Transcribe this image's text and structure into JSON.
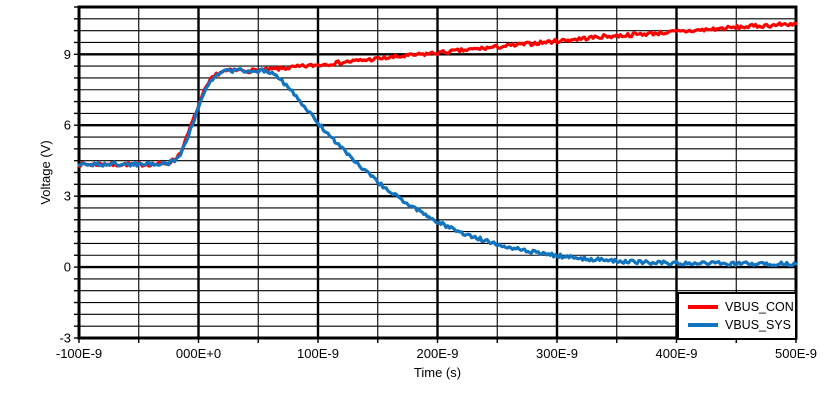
{
  "figure": {
    "background_color": "#ffffff",
    "grid_color": "#000000",
    "frame_color": "#000000"
  },
  "legend": {
    "items": [
      {
        "label": "VBUS_CON",
        "color": "#ff0000"
      },
      {
        "label": "VBUS_SYS",
        "color": "#1273be"
      }
    ]
  },
  "chart_data": {
    "type": "line",
    "title": "",
    "xlabel": "Time (s)",
    "ylabel": "Voltage (V)",
    "x_unit_ns": true,
    "xlim": [
      -100,
      500
    ],
    "ylim": [
      -3,
      11
    ],
    "x_major_tick": 100,
    "x_minor_tick": 50,
    "y_major_tick": 3,
    "y_minor_tick": 0.5,
    "grid": "major+minor",
    "legend_position": "bottom-right",
    "x_tick_values": [
      -100,
      0,
      100,
      200,
      300,
      400,
      500
    ],
    "x_tick_labels": [
      "-100E-9",
      "000E+0",
      "100E-9",
      "200E-9",
      "300E-9",
      "400E-9",
      "500E-9"
    ],
    "y_tick_values": [
      9,
      6,
      3,
      0,
      -3
    ],
    "y_tick_labels": [
      "9",
      "6",
      "3",
      "0",
      "-3"
    ],
    "series": [
      {
        "name": "VBUS_CON",
        "color": "#ff0000",
        "x": [
          -100,
          -90,
          -80,
          -70,
          -60,
          -50,
          -40,
          -30,
          -25,
          -20,
          -15,
          -10,
          -5,
          0,
          5,
          10,
          15,
          20,
          25,
          30,
          35,
          40,
          45,
          50,
          55,
          60,
          70,
          80,
          90,
          100,
          120,
          140,
          160,
          180,
          200,
          220,
          240,
          260,
          280,
          300,
          320,
          336,
          350,
          370,
          400,
          420,
          440,
          460,
          480,
          500
        ],
        "y": [
          4.35,
          4.34,
          4.36,
          4.33,
          4.35,
          4.34,
          4.35,
          4.37,
          4.42,
          4.55,
          4.85,
          5.45,
          6.15,
          6.8,
          7.45,
          7.9,
          8.15,
          8.28,
          8.3,
          8.31,
          8.33,
          8.3,
          8.31,
          8.32,
          8.33,
          8.35,
          8.4,
          8.45,
          8.5,
          8.55,
          8.66,
          8.76,
          8.86,
          8.96,
          9.06,
          9.16,
          9.26,
          9.36,
          9.46,
          9.56,
          9.66,
          9.74,
          9.78,
          9.85,
          9.95,
          10.02,
          10.1,
          10.17,
          10.23,
          10.3
        ]
      },
      {
        "name": "VBUS_SYS",
        "color": "#1273be",
        "x": [
          -100,
          -90,
          -80,
          -70,
          -60,
          -50,
          -40,
          -30,
          -25,
          -20,
          -15,
          -10,
          -5,
          0,
          5,
          10,
          15,
          20,
          25,
          30,
          35,
          40,
          45,
          50,
          55,
          60,
          65,
          70,
          75,
          80,
          85,
          90,
          95,
          100,
          110,
          120,
          130,
          140,
          150,
          160,
          170,
          180,
          190,
          200,
          210,
          220,
          230,
          240,
          250,
          260,
          270,
          280,
          290,
          300,
          310,
          320,
          330,
          340,
          350,
          360,
          370,
          380,
          400,
          420,
          440,
          460,
          480,
          500
        ],
        "y": [
          4.33,
          4.35,
          4.34,
          4.36,
          4.34,
          4.35,
          4.36,
          4.37,
          4.4,
          4.5,
          4.78,
          5.38,
          6.08,
          6.72,
          7.38,
          7.85,
          8.12,
          8.26,
          8.3,
          8.31,
          8.34,
          8.3,
          8.29,
          8.3,
          8.3,
          8.27,
          8.12,
          7.88,
          7.6,
          7.3,
          7.0,
          6.7,
          6.4,
          6.1,
          5.55,
          5.02,
          4.52,
          4.05,
          3.6,
          3.2,
          2.85,
          2.52,
          2.2,
          1.92,
          1.68,
          1.47,
          1.28,
          1.12,
          0.97,
          0.85,
          0.74,
          0.64,
          0.56,
          0.48,
          0.42,
          0.37,
          0.33,
          0.29,
          0.26,
          0.23,
          0.21,
          0.19,
          0.17,
          0.16,
          0.15,
          0.14,
          0.14,
          0.13
        ]
      }
    ]
  }
}
